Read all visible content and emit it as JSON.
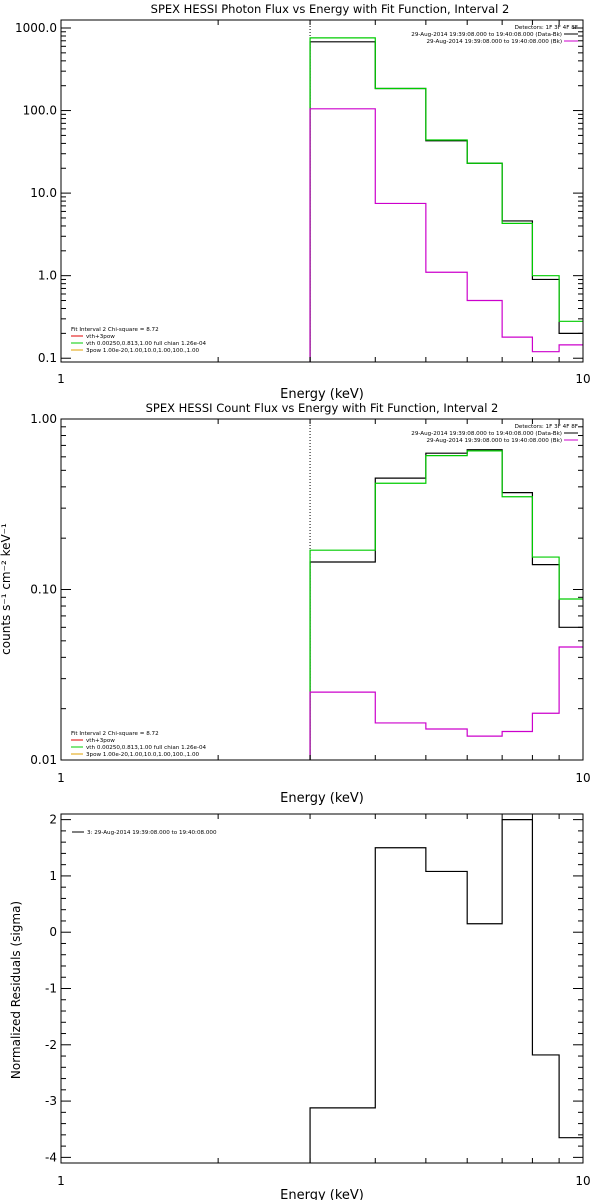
{
  "colors": {
    "black": "#000000",
    "green": "#00cc00",
    "magenta": "#cc00cc",
    "red": "#e00000",
    "orange": "#e0a000"
  },
  "chart_data": [
    {
      "type": "line",
      "title": "SPEX HESSI Photon Flux vs Energy with Fit Function, Interval 2",
      "xlabel": "Energy (keV)",
      "ylabel": "",
      "xscale": "log",
      "yscale": "log",
      "xlim": [
        1,
        10
      ],
      "ylim": [
        0.09,
        1250
      ],
      "xticklabels": [
        "1",
        "10"
      ],
      "yticks": [
        0.1,
        1,
        10,
        100,
        1000
      ],
      "yticklabels": [
        "0.1",
        "1.0",
        "10.0",
        "100.0",
        "1000.0"
      ],
      "vline_x": 3.0,
      "edges": [
        3,
        4,
        5,
        6,
        7,
        8,
        9,
        10
      ],
      "series": [
        {
          "name": "29-Aug-2014 19:39:08.000 to 19:40:08.000 (Data-Bk)",
          "color": "black",
          "values": [
            680,
            185,
            43,
            23,
            4.6,
            0.9,
            0.2
          ]
        },
        {
          "name": "",
          "color": "green",
          "values": [
            760,
            185,
            44,
            23,
            4.3,
            1.0,
            0.28
          ]
        },
        {
          "name": "29-Aug-2014 19:39:08.000 to 19:40:08.000 (Bk)",
          "color": "magenta",
          "values": [
            105,
            7.5,
            1.1,
            0.5,
            0.18,
            0.12,
            0.145
          ]
        }
      ],
      "legend_right": {
        "header": "Detectors: 1F 3F 4F 8F",
        "items": [
          {
            "text": "29-Aug-2014 19:39:08.000 to 19:40:08.000 (Data-Bk)",
            "color": "black"
          },
          {
            "text": "29-Aug-2014 19:39:08.000 to 19:40:08.000 (Bk)",
            "color": "magenta"
          }
        ]
      },
      "legend_left": {
        "header": "Fit Interval 2   Chi-square = 8.72",
        "items": [
          {
            "text": "vth+3pow",
            "color": "red"
          },
          {
            "text": "vth 0.00250,0.813,1.00  full chian 1.26e-04",
            "color": "green"
          },
          {
            "text": "3pow 1.00e-20,1.00,10.0,1.00,100.,1.00",
            "color": "orange"
          }
        ]
      }
    },
    {
      "type": "line",
      "title": "SPEX HESSI Count Flux vs Energy with Fit Function, Interval 2",
      "xlabel": "Energy (keV)",
      "ylabel": "counts s⁻¹ cm⁻² keV⁻¹",
      "xscale": "log",
      "yscale": "log",
      "xlim": [
        1,
        10
      ],
      "ylim": [
        0.01,
        1.0
      ],
      "xticklabels": [
        "1",
        "10"
      ],
      "yticks": [
        0.01,
        0.1,
        1.0
      ],
      "yticklabels": [
        "0.01",
        "0.10",
        "1.00"
      ],
      "vline_x": 3.0,
      "edges": [
        3,
        4,
        5,
        6,
        7,
        8,
        9,
        10
      ],
      "series": [
        {
          "name": "29-Aug-2014 19:39:08.000 to 19:40:08.000 (Data-Bk)",
          "color": "black",
          "values": [
            0.145,
            0.45,
            0.63,
            0.66,
            0.37,
            0.14,
            0.06
          ]
        },
        {
          "name": "",
          "color": "green",
          "values": [
            0.17,
            0.42,
            0.61,
            0.65,
            0.35,
            0.155,
            0.088
          ]
        },
        {
          "name": "29-Aug-2014 19:39:08.000 to 19:40:08.000 (Bk)",
          "color": "magenta",
          "values": [
            0.025,
            0.0165,
            0.0152,
            0.0138,
            0.0147,
            0.0188,
            0.046
          ]
        }
      ],
      "legend_right": {
        "header": "Detectors: 1F 3F 4F 8F",
        "items": [
          {
            "text": "29-Aug-2014 19:39:08.000 to 19:40:08.000 (Data-Bk)",
            "color": "black"
          },
          {
            "text": "29-Aug-2014 19:39:08.000 to 19:40:08.000 (Bk)",
            "color": "magenta"
          }
        ]
      },
      "legend_left": {
        "header": "Fit Interval 2   Chi-square = 8.72",
        "items": [
          {
            "text": "vth+3pow",
            "color": "red"
          },
          {
            "text": "vth 0.00250,0.813,1.00  full chian 1.26e-04",
            "color": "green"
          },
          {
            "text": "3pow 1.00e-20,1.00,10.0,1.00,100.,1.00",
            "color": "orange"
          }
        ]
      }
    },
    {
      "type": "line",
      "title": "",
      "xlabel": "Energy (keV)",
      "ylabel": "Normalized Residuals (sigma)",
      "xscale": "log",
      "yscale": "linear",
      "xlim": [
        1,
        10
      ],
      "ylim": [
        -4.1,
        2.1
      ],
      "xticklabels": [
        "1",
        "10"
      ],
      "yticks": [
        -4,
        -3,
        -2,
        -1,
        0,
        1,
        2
      ],
      "yticklabels": [
        "-4",
        "-3",
        "-2",
        "-1",
        "0",
        "1",
        "2"
      ],
      "edges": [
        3,
        4,
        5,
        6,
        7,
        8,
        9,
        10
      ],
      "series": [
        {
          "name": "3: 29-Aug-2014 19:39:08.000 to 19:40:08.000",
          "color": "black",
          "values": [
            -3.12,
            1.5,
            1.08,
            0.15,
            2.0,
            -2.18,
            -3.65
          ]
        }
      ],
      "legend_items": [
        {
          "text": "3: 29-Aug-2014 19:39:08.000 to 19:40:08.000",
          "color": "black"
        }
      ]
    }
  ]
}
